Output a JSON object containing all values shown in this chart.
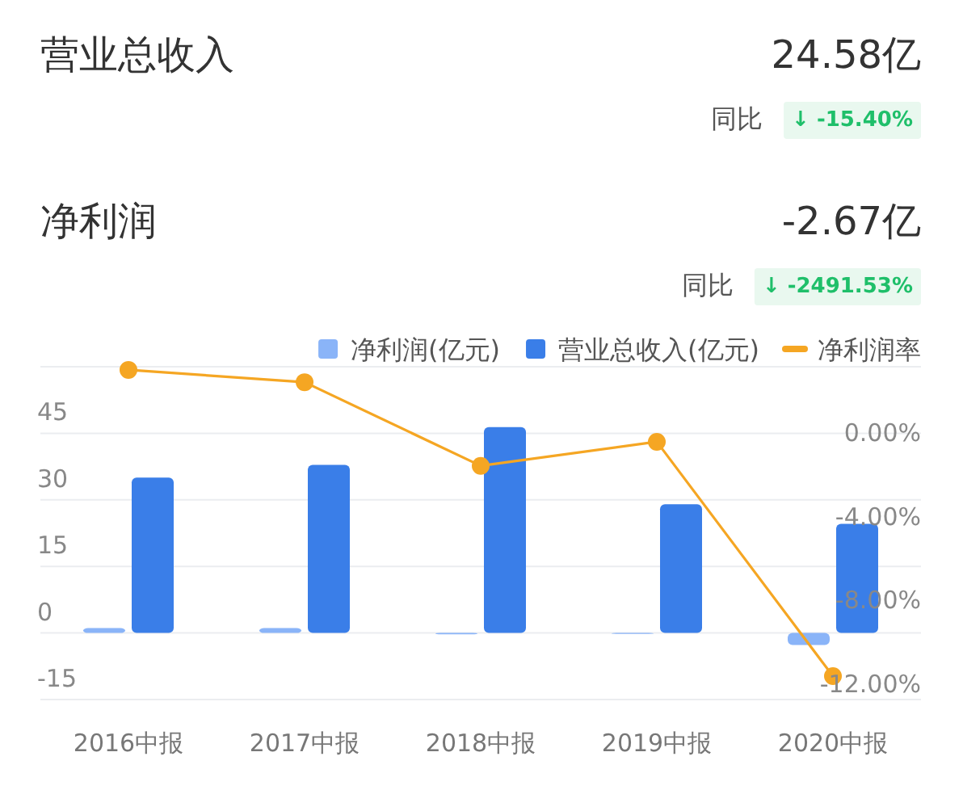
{
  "chart_data": {
    "type": "bar",
    "annotations": [
      "营业总收入",
      "24.58亿",
      "同比",
      "↓ -15.40%",
      "净利润",
      "-2.67亿",
      "同比",
      "↓ -2491.53%"
    ],
    "categories": [
      "2016中报",
      "2017中报",
      "2018中报",
      "2019中报",
      "2020中报"
    ],
    "series": [
      {
        "name": "净利润(亿元)",
        "color": "#8ab4f8",
        "values": [
          1.1,
          1.1,
          -0.3,
          -0.2,
          -2.7
        ]
      },
      {
        "name": "营业总收入(亿元)",
        "color": "#3a7ee8",
        "values": [
          35.0,
          37.9,
          46.4,
          29.0,
          24.6
        ]
      },
      {
        "name": "净利润率",
        "type": "line",
        "axis": "y2",
        "color": "#f5a623",
        "marker": "circle",
        "values": [
          3.03,
          2.44,
          -1.56,
          -0.41,
          -11.62
        ]
      }
    ],
    "ylim": [
      -15,
      60
    ],
    "yticks": [
      -15,
      0,
      15,
      30,
      45,
      {
        "value": 60,
        "label": null
      }
    ],
    "y2lim": [
      -12.74,
      3.18
    ],
    "y2ticks": [
      {
        "value": 0,
        "label": "0.00%"
      },
      {
        "value": -4,
        "label": "-4.00%"
      },
      {
        "value": -8,
        "label": "-8.00%"
      },
      {
        "value": -12,
        "label": "-12.00%"
      }
    ],
    "grid": "y",
    "legend": "top right"
  }
}
